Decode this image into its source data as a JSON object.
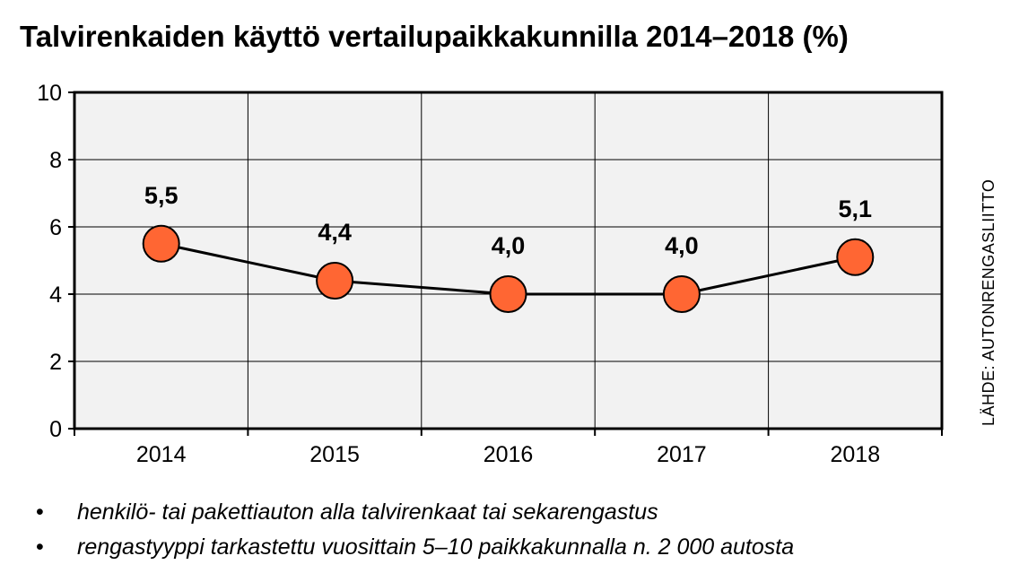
{
  "title": "Talvirenkaiden käyttö vertailupaikkakunnilla 2014–2018 (%)",
  "source": "LÄHDE: AUTONRENGASLIITTO",
  "notes": [
    "henkilö- tai pakettiauton alla talvirenkaat tai sekarengastus",
    "rengastyyppi tarkastettu vuosittain 5–10 paikkakunnalla n. 2 000 autosta"
  ],
  "colors": {
    "marker": "#FF6633",
    "plot_bg": "#F2F2F2",
    "line": "#000000",
    "grid": "#000000"
  },
  "chart_data": {
    "type": "line",
    "title": "Talvirenkaiden käyttö vertailupaikkakunnilla 2014–2018 (%)",
    "categories": [
      "2014",
      "2015",
      "2016",
      "2017",
      "2018"
    ],
    "values": [
      5.5,
      4.4,
      4.0,
      4.0,
      5.1
    ],
    "data_labels": [
      "5,5",
      "4,4",
      "4,0",
      "4,0",
      "5,1"
    ],
    "yticks": [
      "0",
      "2",
      "4",
      "6",
      "8",
      "10"
    ],
    "ylim": [
      0,
      10
    ],
    "grid": true,
    "legend": false
  }
}
